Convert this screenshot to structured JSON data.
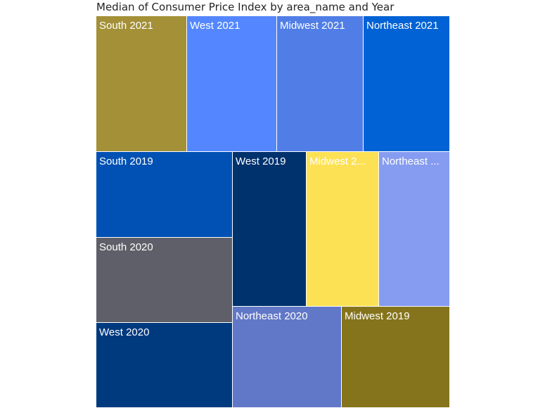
{
  "chart_data": {
    "type": "treemap",
    "title": "Median of Consumer Price Index by area_name and Year",
    "tiles": [
      {
        "label": "South 2021",
        "color": "#A39037"
      },
      {
        "label": "West 2021",
        "color": "#5487FF"
      },
      {
        "label": "Midwest 2021",
        "color": "#507EE6"
      },
      {
        "label": "Northeast 2021",
        "color": "#0062D4"
      },
      {
        "label": "South 2019",
        "color": "#0051B3"
      },
      {
        "label": "West 2019",
        "color": "#00326E"
      },
      {
        "label": "Midwest 2...",
        "color": "#FCE155"
      },
      {
        "label": "Northeast ...",
        "color": "#869CF1"
      },
      {
        "label": "South 2020",
        "color": "#5F5F69"
      },
      {
        "label": "West 2020",
        "color": "#003A7E"
      },
      {
        "label": "Northeast 2020",
        "color": "#6177C7"
      },
      {
        "label": "Midwest 2019",
        "color": "#85741B"
      }
    ]
  }
}
